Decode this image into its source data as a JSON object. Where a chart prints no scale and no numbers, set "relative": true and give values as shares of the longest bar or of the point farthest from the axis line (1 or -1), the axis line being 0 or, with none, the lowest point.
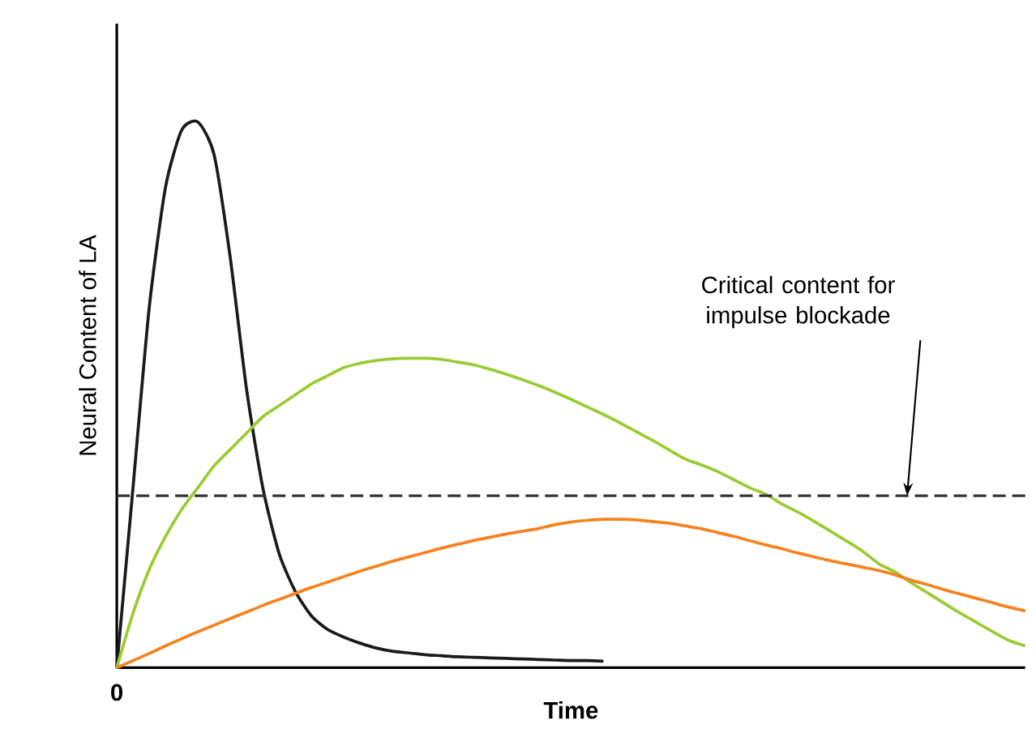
{
  "chart_data": {
    "type": "line",
    "relative": true,
    "xlabel": "Time",
    "ylabel": "Neural Content of LA",
    "tick_labels": false,
    "marker": "none",
    "annotations": [
      "0"
    ],
    "categories": [
      null,
      null,
      null,
      null,
      null,
      null,
      null,
      null,
      null,
      null,
      null,
      null,
      null,
      null,
      null,
      null,
      null,
      null,
      null,
      null,
      null,
      null,
      null,
      null,
      null,
      null,
      null,
      null,
      null,
      null,
      null,
      null,
      null,
      null,
      null,
      null,
      null,
      null,
      null,
      null,
      null,
      null,
      null,
      null,
      null,
      null,
      null,
      null,
      null,
      null,
      null,
      null,
      null,
      null,
      null,
      null,
      null
    ],
    "series": [
      {
        "color": "#1a1a1a",
        "line_style": "solid",
        "values": [
          0,
          0.33,
          0.66,
          0.88,
          0.985,
          1.0,
          0.94,
          0.75,
          0.51,
          0.33,
          0.21,
          0.14,
          0.095,
          0.07,
          0.056,
          0.045,
          0.036,
          0.03,
          0.027,
          0.024,
          0.022,
          0.02,
          0.019,
          0.018,
          0.017,
          0.016,
          0.015,
          0.014,
          0.013,
          0.013,
          0.012,
          null,
          null,
          null,
          null,
          null,
          null,
          null,
          null,
          null,
          null,
          null,
          null,
          null,
          null,
          null,
          null,
          null,
          null,
          null,
          null,
          null,
          null,
          null,
          null,
          null,
          null
        ]
      },
      {
        "color": "#99cc33",
        "line_style": "solid",
        "values": [
          0,
          0.1,
          0.18,
          0.24,
          0.29,
          0.33,
          0.37,
          0.4,
          0.43,
          0.46,
          0.48,
          0.5,
          0.52,
          0.535,
          0.55,
          0.558,
          0.563,
          0.566,
          0.567,
          0.567,
          0.565,
          0.56,
          0.555,
          0.547,
          0.538,
          0.528,
          0.517,
          0.505,
          0.492,
          0.478,
          0.464,
          0.449,
          0.433,
          0.417,
          0.4,
          0.383,
          0.372,
          0.36,
          0.345,
          0.33,
          0.318,
          0.3,
          0.285,
          0.268,
          0.25,
          0.232,
          0.213,
          0.19,
          0.175,
          0.155,
          0.137,
          0.118,
          0.1,
          0.083,
          0.066,
          0.05,
          0.04
        ]
      },
      {
        "color": "#f58220",
        "line_style": "solid",
        "values": [
          0,
          0.013,
          0.026,
          0.04,
          0.053,
          0.066,
          0.078,
          0.09,
          0.102,
          0.114,
          0.125,
          0.136,
          0.147,
          0.157,
          0.167,
          0.177,
          0.186,
          0.195,
          0.203,
          0.211,
          0.219,
          0.226,
          0.233,
          0.239,
          0.245,
          0.25,
          0.255,
          0.262,
          0.267,
          0.27,
          0.272,
          0.272,
          0.271,
          0.268,
          0.265,
          0.26,
          0.255,
          0.248,
          0.241,
          0.233,
          0.225,
          0.218,
          0.21,
          0.203,
          0.196,
          0.19,
          0.184,
          0.178,
          0.17,
          0.16,
          0.152,
          0.143,
          0.135,
          0.127,
          0.119,
          0.111,
          0.104
        ]
      }
    ],
    "ref_lines": [
      {
        "axis": "y",
        "value": 0.315,
        "label": "Critical content for impulse blockade",
        "color": "#333333",
        "line_style": "dashed"
      }
    ]
  }
}
